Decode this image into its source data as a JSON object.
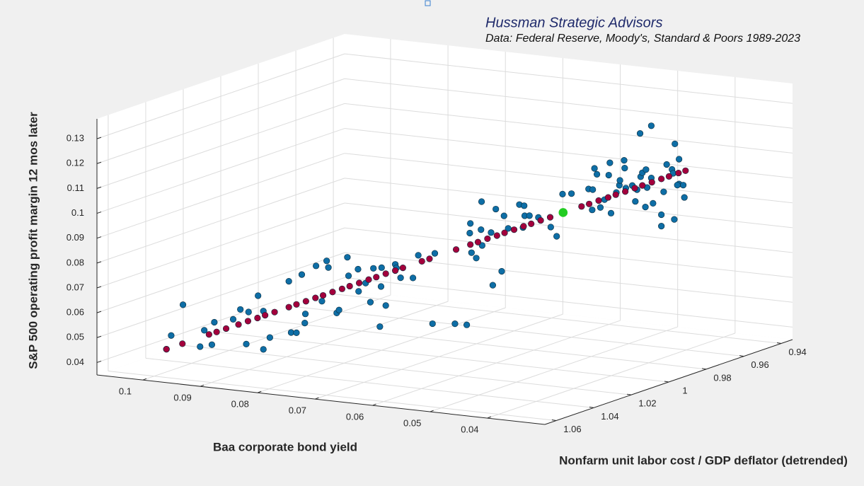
{
  "chart_data": {
    "type": "scatter3d",
    "title": "Hussman Strategic Advisors",
    "subtitle": "Data: Federal Reserve, Moody's, Standard & Poors 1989-2023",
    "xlabel": "Baa corporate bond yield",
    "ylabel": "Nonfarm unit labor cost / GDP deflator (detrended)",
    "zlabel": "S&P 500 operating profit margin 12 mos later",
    "xlim": [
      0.03,
      0.108
    ],
    "ylim": [
      0.934,
      1.066
    ],
    "zlim": [
      0.035,
      0.138
    ],
    "xticks": [
      0.04,
      0.05,
      0.06,
      0.07,
      0.08,
      0.09,
      0.1
    ],
    "yticks": [
      0.94,
      0.96,
      0.98,
      1,
      1.02,
      1.04,
      1.06
    ],
    "zticks": [
      0.04,
      0.05,
      0.06,
      0.07,
      0.08,
      0.09,
      0.1,
      0.11,
      0.12,
      0.13
    ],
    "grid": true,
    "series": [
      {
        "color": "#0e6ea6",
        "x": [
          0.1008,
          0.1003,
          0.0989,
          0.0969,
          0.0965,
          0.0955,
          0.0954,
          0.0931,
          0.0925,
          0.0918,
          0.0914,
          0.0904,
          0.0898,
          0.0898,
          0.089,
          0.087,
          0.0866,
          0.086,
          0.0852,
          0.0851,
          0.0854,
          0.0839,
          0.0832,
          0.0827,
          0.0824,
          0.0816,
          0.0812,
          0.0804,
          0.0802,
          0.0792,
          0.0791,
          0.0782,
          0.0777,
          0.0775,
          0.0767,
          0.0765,
          0.076,
          0.0764,
          0.075,
          0.0748,
          0.0744,
          0.0729,
          0.0723,
          0.0708,
          0.0704,
          0.0682,
          0.0668,
          0.0665,
          0.0666,
          0.0663,
          0.0658,
          0.0652,
          0.0651,
          0.0653,
          0.0642,
          0.0637,
          0.0639,
          0.063,
          0.0626,
          0.0622,
          0.0609,
          0.0604,
          0.0603,
          0.0606,
          0.0598,
          0.0589,
          0.0574,
          0.0567,
          0.056,
          0.0551,
          0.0531,
          0.0528,
          0.0527,
          0.0524,
          0.0523,
          0.0517,
          0.0513,
          0.0509,
          0.0507,
          0.0505,
          0.0499,
          0.0497,
          0.0496,
          0.0492,
          0.0491,
          0.0489,
          0.0481,
          0.0479,
          0.0476,
          0.0474,
          0.0473,
          0.047,
          0.0467,
          0.0465,
          0.0461,
          0.0461,
          0.0458,
          0.0468,
          0.045,
          0.045,
          0.0446,
          0.0444,
          0.0438,
          0.0436,
          0.0434,
          0.0433,
          0.0429,
          0.0429,
          0.0425,
          0.0423,
          0.0432
        ],
        "y": [
          1.051,
          1.05,
          1.048,
          1.045,
          1.044,
          1.043,
          1.042,
          1.039,
          1.037,
          1.036,
          1.036,
          1.034,
          1.033,
          1.033,
          1.032,
          1.028,
          1.028,
          1.027,
          1.025,
          1.025,
          1.026,
          1.023,
          1.022,
          1.021,
          1.021,
          1.019,
          1.019,
          1.017,
          1.017,
          1.015,
          1.015,
          1.014,
          1.013,
          1.012,
          1.011,
          1.011,
          1.01,
          1.011,
          1.008,
          1.008,
          1.007,
          1.005,
          1.004,
          1.001,
          1.001,
          0.997,
          0.995,
          0.994,
          0.994,
          0.994,
          0.993,
          0.992,
          0.992,
          0.992,
          0.99,
          0.989,
          0.99,
          0.988,
          0.988,
          0.987,
          0.985,
          0.984,
          0.984,
          0.984,
          0.983,
          0.981,
          0.979,
          0.978,
          0.977,
          0.975,
          0.972,
          0.971,
          0.971,
          0.971,
          0.97,
          0.97,
          0.969,
          0.968,
          0.968,
          0.968,
          0.967,
          0.966,
          0.966,
          0.965,
          0.965,
          0.965,
          0.964,
          0.963,
          0.963,
          0.962,
          0.962,
          0.962,
          0.961,
          0.961,
          0.96,
          0.96,
          0.96,
          0.961,
          0.958,
          0.958,
          0.958,
          0.957,
          0.956,
          0.956,
          0.956,
          0.956,
          0.955,
          0.955,
          0.954,
          0.954,
          0.955
        ],
        "z": [
          0.0433,
          0.0487,
          0.0609,
          0.0438,
          0.0502,
          0.0444,
          0.0532,
          0.0542,
          0.0578,
          0.0438,
          0.0568,
          0.0631,
          0.0414,
          0.0568,
          0.0461,
          0.0682,
          0.0477,
          0.0475,
          0.0511,
          0.0548,
          0.0708,
          0.0739,
          0.0596,
          0.0757,
          0.0731,
          0.0545,
          0.0558,
          0.0767,
          0.0693,
          0.0717,
          0.0628,
          0.0661,
          0.0583,
          0.0717,
          0.0482,
          0.0644,
          0.0566,
          0.072,
          0.0729,
          0.0715,
          0.0674,
          0.0672,
          0.0762,
          0.0483,
          0.0767,
          0.0479,
          0.0473,
          0.0879,
          0.084,
          0.0762,
          0.0739,
          0.0965,
          0.0789,
          0.0852,
          0.0838,
          0.0931,
          0.0627,
          0.068,
          0.0904,
          0.0852,
          0.0946,
          0.094,
          0.09,
          0.0852,
          0.0899,
          0.0889,
          0.0849,
          0.0811,
          0.098,
          0.0979,
          0.0995,
          0.0909,
          0.0991,
          0.1077,
          0.1051,
          0.0919,
          0.0949,
          0.1046,
          0.1096,
          0.0894,
          0.0976,
          0.1003,
          0.1023,
          0.1102,
          0.1071,
          0.0991,
          0.1001,
          0.0935,
          0.0983,
          0.1207,
          0.1033,
          0.105,
          0.1061,
          0.0989,
          0.1236,
          0.1026,
          0.0925,
          0.091,
          0.0876,
          0.083,
          0.0969,
          0.1077,
          0.1056,
          0.1041,
          0.0856,
          0.116,
          0.1097,
          0.0997,
          0.0991,
          0.0942,
          0.0992
        ]
      },
      {
        "color": "#a3003c",
        "x": [
          0.1008,
          0.099,
          0.096,
          0.095,
          0.094,
          0.0925,
          0.0915,
          0.0905,
          0.0895,
          0.0885,
          0.087,
          0.086,
          0.085,
          0.084,
          0.083,
          0.082,
          0.081,
          0.08,
          0.079,
          0.078,
          0.077,
          0.076,
          0.075,
          0.074,
          0.072,
          0.071,
          0.068,
          0.0665,
          0.0655,
          0.0645,
          0.0635,
          0.0625,
          0.0615,
          0.0605,
          0.0595,
          0.0585,
          0.0575,
          0.056,
          0.054,
          0.053,
          0.052,
          0.051,
          0.05,
          0.049,
          0.048,
          0.047,
          0.046,
          0.045,
          0.044,
          0.043,
          0.0421
        ],
        "y": [
          1.051,
          1.048,
          1.043,
          1.042,
          1.04,
          1.038,
          1.036,
          1.034,
          1.033,
          1.031,
          1.028,
          1.027,
          1.025,
          1.023,
          1.022,
          1.02,
          1.018,
          1.017,
          1.015,
          1.013,
          1.012,
          1.01,
          1.008,
          1.007,
          1.003,
          1.002,
          0.997,
          0.994,
          0.993,
          0.991,
          0.989,
          0.988,
          0.986,
          0.984,
          0.983,
          0.981,
          0.979,
          0.977,
          0.973,
          0.972,
          0.97,
          0.968,
          0.967,
          0.965,
          0.963,
          0.962,
          0.96,
          0.958,
          0.957,
          0.955,
          0.954
        ],
        "z": [
          0.0433,
          0.0452,
          0.0484,
          0.0494,
          0.0505,
          0.052,
          0.0531,
          0.0541,
          0.0552,
          0.0562,
          0.0578,
          0.0589,
          0.0599,
          0.061,
          0.062,
          0.0631,
          0.0641,
          0.0652,
          0.0662,
          0.0673,
          0.0683,
          0.0694,
          0.0704,
          0.0715,
          0.0736,
          0.0746,
          0.0778,
          0.0794,
          0.0804,
          0.0815,
          0.0825,
          0.0836,
          0.0846,
          0.0857,
          0.0867,
          0.0878,
          0.0888,
          0.0904,
          0.0925,
          0.0935,
          0.0946,
          0.0956,
          0.0967,
          0.0977,
          0.0988,
          0.0999,
          0.1009,
          0.102,
          0.103,
          0.1041,
          0.105
        ]
      },
      {
        "color": "#22cc22",
        "x": [
          0.0559
        ],
        "y": [
          0.977
        ],
        "z": [
          0.0906
        ]
      }
    ]
  }
}
